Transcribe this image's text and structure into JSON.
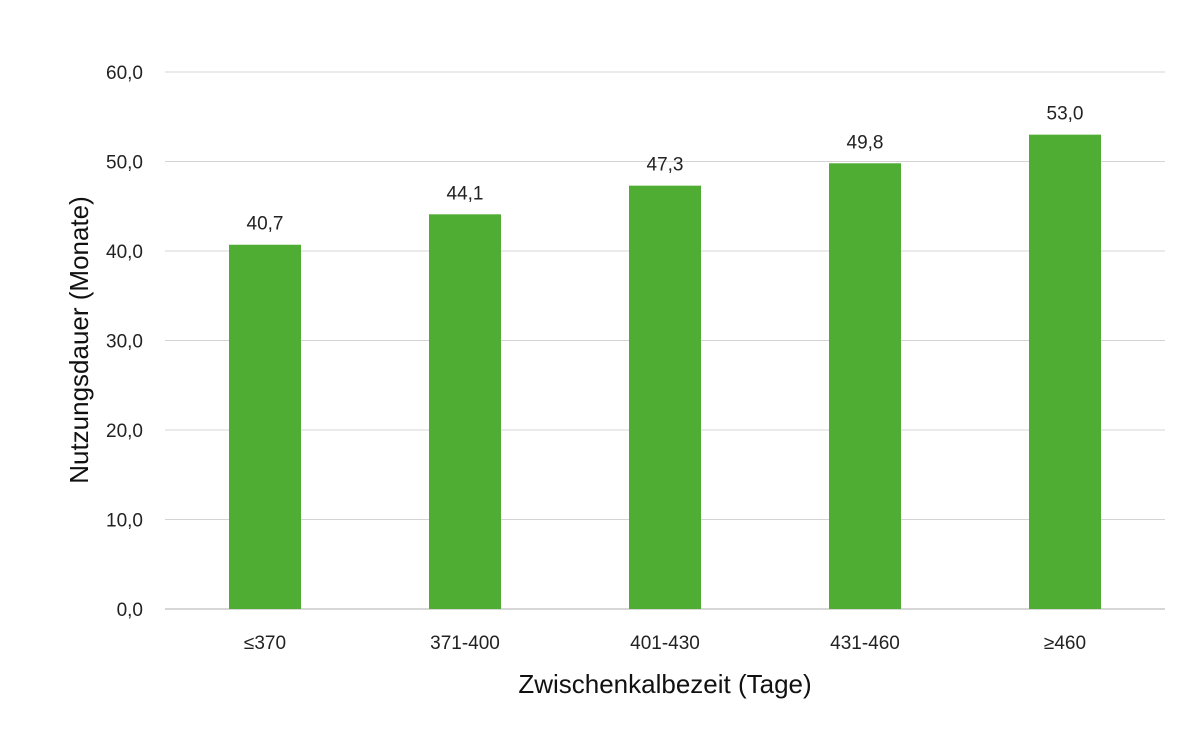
{
  "chart_data": {
    "type": "bar",
    "title": "",
    "xlabel": "Zwischenkalbezeit (Tage)",
    "ylabel": "Nutzungsdauer (Monate)",
    "categories": [
      "≤370",
      "371-400",
      "401-430",
      "431-460",
      "≥460"
    ],
    "values": [
      40.7,
      44.1,
      47.3,
      49.8,
      53.0
    ],
    "value_labels": [
      "40,7",
      "44,1",
      "47,3",
      "49,8",
      "53,0"
    ],
    "ylim": [
      0,
      60
    ],
    "yticks": [
      0,
      10,
      20,
      30,
      40,
      50,
      60
    ],
    "ytick_labels": [
      "0,0",
      "10,0",
      "20,0",
      "30,0",
      "40,0",
      "50,0",
      "60,0"
    ],
    "grid": true,
    "legend": "none",
    "bar_color": "#4fad33"
  }
}
